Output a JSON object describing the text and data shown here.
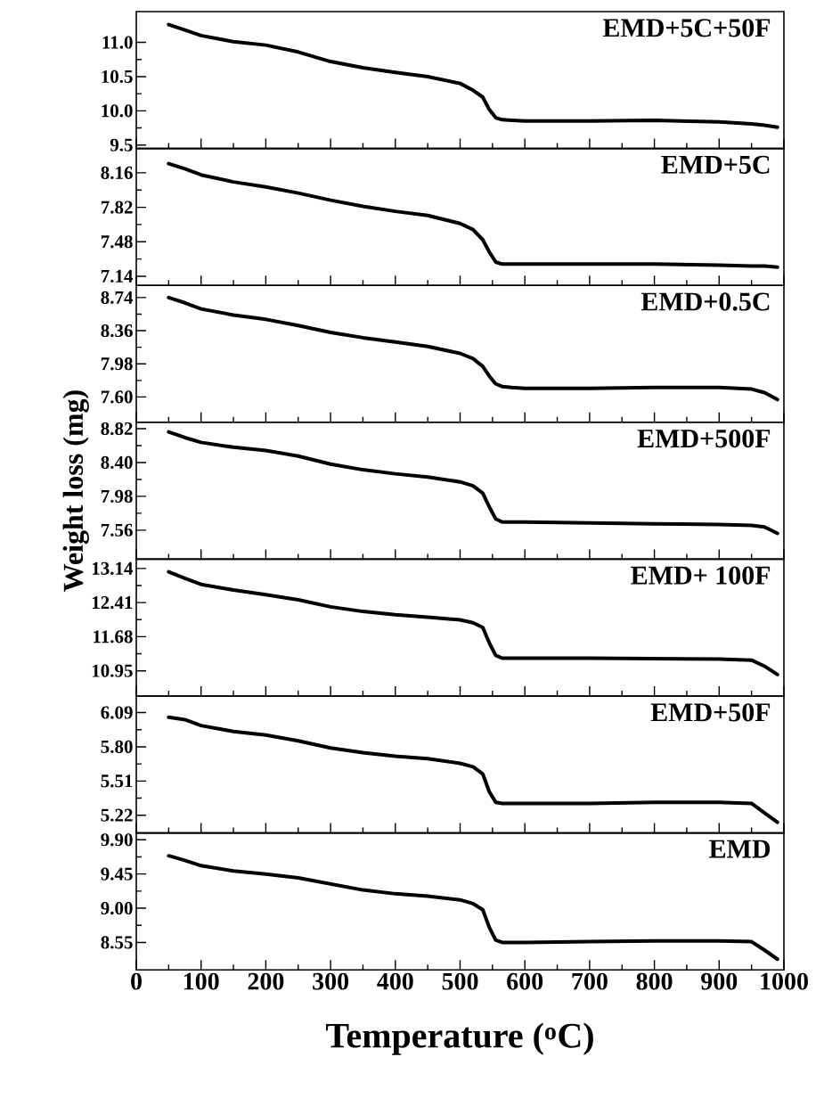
{
  "chart_data": [
    {
      "type": "line",
      "x": [
        50,
        75,
        100,
        150,
        200,
        250,
        300,
        350,
        400,
        450,
        500,
        520,
        535,
        545,
        555,
        565,
        580,
        600,
        700,
        800,
        900,
        950,
        970,
        990
      ],
      "xlim": [
        0,
        1000
      ],
      "xticks": [
        0,
        100,
        200,
        300,
        400,
        500,
        600,
        700,
        800,
        900,
        1000
      ],
      "ylim": [
        9.45,
        11.45
      ],
      "yticks": [
        9.5,
        {
          "value": 10.0,
          "label": "10.0"
        },
        10.5,
        {
          "value": 11.0,
          "label": "11.0"
        }
      ],
      "tick_labels": "y",
      "series": [
        {
          "name": "EMD+5C+50F",
          "color": "#000000",
          "values": [
            11.26,
            11.18,
            11.1,
            11.01,
            10.96,
            10.86,
            10.72,
            10.63,
            10.56,
            10.5,
            10.4,
            10.3,
            10.2,
            10.02,
            9.9,
            9.87,
            9.86,
            9.85,
            9.85,
            9.86,
            9.84,
            9.81,
            9.79,
            9.76
          ]
        }
      ]
    },
    {
      "type": "line",
      "x": [
        50,
        75,
        100,
        150,
        200,
        250,
        300,
        350,
        400,
        450,
        500,
        520,
        535,
        545,
        555,
        565,
        580,
        600,
        700,
        800,
        900,
        950,
        970,
        990
      ],
      "xlim": [
        0,
        1000
      ],
      "xticks": [
        0,
        100,
        200,
        300,
        400,
        500,
        600,
        700,
        800,
        900,
        1000
      ],
      "ylim": [
        7.05,
        8.4
      ],
      "yticks": [
        7.14,
        7.48,
        7.82,
        8.16
      ],
      "tick_labels": "y",
      "series": [
        {
          "name": "EMD+5C",
          "color": "#000000",
          "values": [
            8.25,
            8.2,
            8.14,
            8.07,
            8.02,
            7.96,
            7.89,
            7.83,
            7.78,
            7.74,
            7.66,
            7.6,
            7.5,
            7.38,
            7.28,
            7.26,
            7.26,
            7.26,
            7.26,
            7.26,
            7.25,
            7.24,
            7.24,
            7.23
          ]
        }
      ]
    },
    {
      "type": "line",
      "x": [
        50,
        75,
        100,
        150,
        200,
        250,
        300,
        350,
        400,
        450,
        500,
        520,
        535,
        545,
        555,
        565,
        580,
        600,
        700,
        800,
        900,
        950,
        970,
        990
      ],
      "xlim": [
        0,
        1000
      ],
      "xticks": [
        0,
        100,
        200,
        300,
        400,
        500,
        600,
        700,
        800,
        900,
        1000
      ],
      "ylim": [
        7.31,
        8.88
      ],
      "yticks": [
        {
          "value": 7.6,
          "label": "7.60"
        },
        7.98,
        8.36,
        8.74
      ],
      "tick_labels": "y",
      "series": [
        {
          "name": "EMD+0.5C",
          "color": "#000000",
          "values": [
            8.74,
            8.68,
            8.61,
            8.54,
            8.49,
            8.42,
            8.34,
            8.28,
            8.23,
            8.18,
            8.1,
            8.04,
            7.95,
            7.84,
            7.75,
            7.72,
            7.71,
            7.7,
            7.7,
            7.71,
            7.71,
            7.69,
            7.65,
            7.57
          ]
        }
      ]
    },
    {
      "type": "line",
      "ylabel": "Weight loss (mg)",
      "x": [
        50,
        75,
        100,
        150,
        200,
        250,
        300,
        350,
        400,
        450,
        500,
        520,
        535,
        545,
        555,
        565,
        580,
        600,
        700,
        800,
        900,
        950,
        970,
        990
      ],
      "xlim": [
        0,
        1000
      ],
      "xticks": [
        0,
        100,
        200,
        300,
        400,
        500,
        600,
        700,
        800,
        900,
        1000
      ],
      "ylim": [
        7.2,
        8.9
      ],
      "yticks": [
        7.56,
        7.98,
        {
          "value": 8.4,
          "label": "8.40"
        },
        8.82
      ],
      "tick_labels": "y",
      "series": [
        {
          "name": "EMD+500F",
          "color": "#000000",
          "values": [
            8.78,
            8.71,
            8.65,
            8.59,
            8.55,
            8.48,
            8.38,
            8.31,
            8.26,
            8.22,
            8.16,
            8.11,
            8.02,
            7.85,
            7.7,
            7.66,
            7.66,
            7.66,
            7.65,
            7.64,
            7.63,
            7.62,
            7.6,
            7.52
          ]
        }
      ]
    },
    {
      "type": "line",
      "x": [
        50,
        75,
        100,
        150,
        200,
        250,
        300,
        350,
        400,
        450,
        500,
        520,
        535,
        545,
        555,
        565,
        580,
        600,
        700,
        800,
        900,
        950,
        970,
        990
      ],
      "xlim": [
        0,
        1000
      ],
      "xticks": [
        0,
        100,
        200,
        300,
        400,
        500,
        600,
        700,
        800,
        900,
        1000
      ],
      "ylim": [
        10.41,
        13.34
      ],
      "yticks": [
        10.95,
        11.68,
        12.41,
        13.14
      ],
      "tick_labels": "y",
      "series": [
        {
          "name": "EMD+ 100F",
          "color": "#000000",
          "values": [
            13.07,
            12.93,
            12.8,
            12.68,
            12.58,
            12.47,
            12.32,
            12.22,
            12.15,
            12.1,
            12.04,
            11.98,
            11.88,
            11.55,
            11.28,
            11.22,
            11.22,
            11.22,
            11.22,
            11.21,
            11.2,
            11.18,
            11.05,
            10.87
          ]
        }
      ]
    },
    {
      "type": "line",
      "x": [
        50,
        75,
        100,
        150,
        200,
        250,
        300,
        350,
        400,
        450,
        500,
        520,
        535,
        545,
        555,
        565,
        580,
        600,
        700,
        800,
        900,
        950,
        970,
        990
      ],
      "xlim": [
        0,
        1000
      ],
      "xticks": [
        0,
        100,
        200,
        300,
        400,
        500,
        600,
        700,
        800,
        900,
        1000
      ],
      "ylim": [
        5.07,
        6.23
      ],
      "yticks": [
        5.22,
        5.51,
        {
          "value": 5.8,
          "label": "5.80"
        },
        6.09
      ],
      "tick_labels": "y",
      "series": [
        {
          "name": "EMD+50F",
          "color": "#000000",
          "values": [
            6.05,
            6.03,
            5.98,
            5.93,
            5.9,
            5.85,
            5.79,
            5.75,
            5.72,
            5.7,
            5.66,
            5.63,
            5.57,
            5.42,
            5.33,
            5.32,
            5.32,
            5.32,
            5.32,
            5.33,
            5.33,
            5.32,
            5.24,
            5.16
          ]
        }
      ]
    },
    {
      "type": "line",
      "xlabel": "Temperature ($^{o}$C)",
      "x": [
        50,
        75,
        100,
        150,
        200,
        250,
        300,
        350,
        400,
        450,
        500,
        520,
        535,
        545,
        555,
        565,
        580,
        600,
        700,
        800,
        900,
        950,
        970,
        990
      ],
      "xlim": [
        0,
        1000
      ],
      "xticks": [
        0,
        100,
        200,
        300,
        400,
        500,
        600,
        700,
        800,
        900,
        1000
      ],
      "ylim": [
        8.19,
        9.99
      ],
      "yticks": [
        8.55,
        {
          "value": 9.0,
          "label": "9.00"
        },
        9.45,
        {
          "value": 9.9,
          "label": "9.90"
        }
      ],
      "series": [
        {
          "name": "EMD",
          "color": "#000000",
          "values": [
            9.69,
            9.63,
            9.56,
            9.49,
            9.45,
            9.4,
            9.32,
            9.24,
            9.19,
            9.16,
            9.11,
            9.06,
            8.98,
            8.75,
            8.58,
            8.55,
            8.55,
            8.55,
            8.56,
            8.57,
            8.57,
            8.56,
            8.45,
            8.33
          ]
        }
      ]
    }
  ]
}
